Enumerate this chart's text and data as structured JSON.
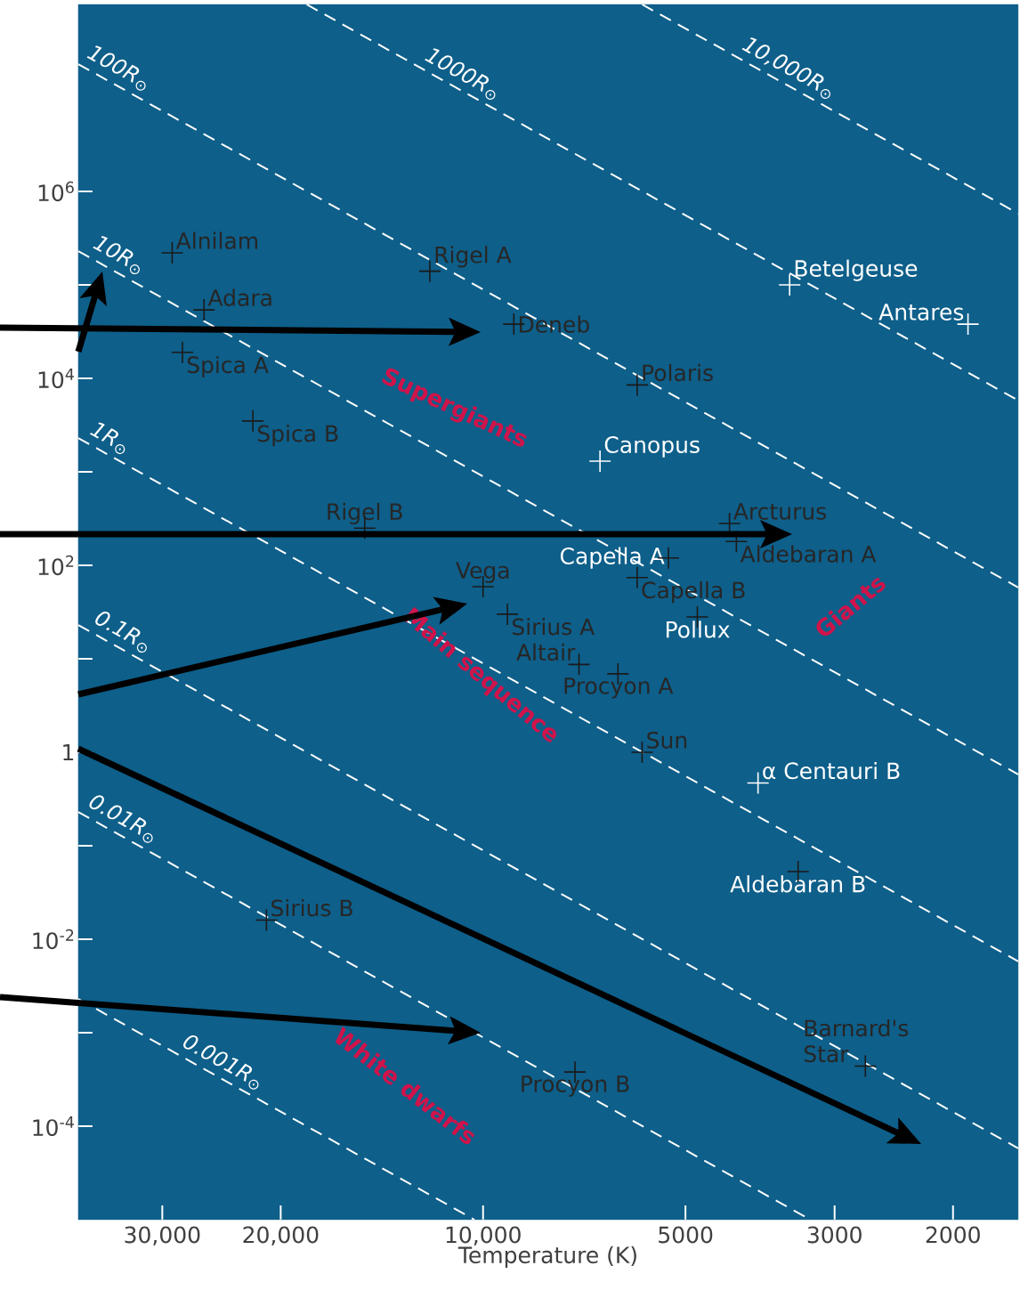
{
  "chart_data": {
    "type": "scatter",
    "xlabel": "Temperature (K)",
    "log": "xy",
    "xlim": [
      40000,
      1600
    ],
    "ylim": [
      1e-05,
      100000000.0
    ],
    "xticks": [
      {
        "value": 30000,
        "label": "30,000"
      },
      {
        "value": 20000,
        "label": "20,000"
      },
      {
        "value": 10000,
        "label": "10,000"
      },
      5000,
      3000,
      2000
    ],
    "yticks": [
      {
        "value": 0.0001,
        "label": "10$^{-4}$"
      },
      {
        "value": 0.001,
        "label": null
      },
      {
        "value": 0.01,
        "label": "10$^{-2}$"
      },
      {
        "value": 0.1,
        "label": null
      },
      1,
      {
        "value": 10,
        "label": null
      },
      {
        "value": 100,
        "label": "10$^{2}$"
      },
      {
        "value": 1000,
        "label": null
      },
      {
        "value": 10000,
        "label": "10$^{4}$"
      },
      {
        "value": 100000,
        "label": null
      },
      {
        "value": 1000000,
        "label": "10$^{6}$"
      }
    ],
    "marker": "cross",
    "grid": false,
    "series": [
      {
        "type": "line",
        "line_style": "dashed",
        "marker": "none",
        "color": "#ffffff",
        "x": [
          5800,
          1600
        ],
        "values": [
          100000000.0,
          580000.0
        ]
      },
      {
        "type": "line",
        "line_style": "dashed",
        "marker": "none",
        "color": "#ffffff",
        "x": [
          18300,
          1600
        ],
        "values": [
          100000000.0,
          5800
        ]
      },
      {
        "type": "line",
        "line_style": "dashed",
        "marker": "none",
        "color": "#ffffff",
        "x": [
          40000,
          1600
        ],
        "values": [
          23000000.0,
          58
        ]
      },
      {
        "type": "line",
        "line_style": "dashed",
        "marker": "none",
        "color": "#ffffff",
        "x": [
          40000,
          1600
        ],
        "values": [
          230000.0,
          0.58
        ]
      },
      {
        "type": "line",
        "line_style": "dashed",
        "marker": "none",
        "color": "#ffffff",
        "x": [
          40000,
          1600
        ],
        "values": [
          2300,
          0.0058
        ]
      },
      {
        "type": "line",
        "line_style": "dashed",
        "marker": "none",
        "color": "#ffffff",
        "x": [
          40000,
          1600
        ],
        "values": [
          23,
          5.8e-05
        ]
      },
      {
        "type": "line",
        "line_style": "dashed",
        "marker": "none",
        "color": "#ffffff",
        "x": [
          40000,
          3260
        ],
        "values": [
          0.23,
          1e-05
        ]
      },
      {
        "type": "line",
        "line_style": "dashed",
        "marker": "none",
        "color": "#ffffff",
        "x": [
          40000,
          10300
        ],
        "values": [
          0.0023,
          1e-05
        ]
      },
      {
        "x": [
          29000,
          26000,
          28000,
          22000,
          12000,
          9000,
          5900,
          3500,
          1900,
          6700,
          15000,
          4300,
          5300,
          4200,
          5900,
          4800,
          10000,
          9200,
          7200,
          6300,
          5800,
          3900,
          3400,
          2700,
          21000,
          7300
        ],
        "values": [
          220000,
          54000,
          19000,
          3500,
          140000,
          38000,
          8500,
          100000,
          38000,
          1300,
          250,
          280,
          120,
          180,
          74,
          28,
          59,
          30,
          8.7,
          6.9,
          1,
          0.47,
          0.053,
          0.00044,
          0.016,
          0.00038
        ],
        "colors": [
          "#1a1a1a",
          "#1a1a1a",
          "#1a1a1a",
          "#1a1a1a",
          "#1a1a1a",
          "#1a1a1a",
          "#1a1a1a",
          "#ffffff",
          "#ffffff",
          "#ffffff",
          "#1a1a1a",
          "#1a1a1a",
          "#1a1a1a",
          "#1a1a1a",
          "#1a1a1a",
          "#1a1a1a",
          "#1a1a1a",
          "#1a1a1a",
          "#1a1a1a",
          "#1a1a1a",
          "#1a1a1a",
          "#ffffff",
          "#1a1a1a",
          "#1a1a1a",
          "#1a1a1a",
          "#1a1a1a"
        ]
      }
    ],
    "annotations": [
      {
        "text": "Alnilam",
        "x": 29000,
        "y": 220000
      },
      {
        "text": "Adara",
        "x": 26000,
        "y": 54000
      },
      {
        "text": "Spica A",
        "x": 28000,
        "y": 19000
      },
      {
        "text": "Spica B",
        "x": 22000,
        "y": 3500
      },
      {
        "text": "Rigel A",
        "x": 12000,
        "y": 140000
      },
      {
        "text": "Deneb",
        "x": 9000,
        "y": 38000
      },
      {
        "text": "Polaris",
        "x": 5900,
        "y": 8500
      },
      {
        "text": "Betelgeuse",
        "x": 3500,
        "y": 100000
      },
      {
        "text": "Antares",
        "x": 1900,
        "y": 38000
      },
      {
        "text": "Canopus",
        "x": 6700,
        "y": 1300
      },
      {
        "text": "Rigel B",
        "x": 15000,
        "y": 250
      },
      {
        "text": "Arcturus",
        "x": 4300,
        "y": 280
      },
      {
        "text": "Capella A",
        "x": 5300,
        "y": 120
      },
      {
        "text": "Aldebaran A",
        "x": 4200,
        "y": 180
      },
      {
        "text": "Capella B",
        "x": 5900,
        "y": 74
      },
      {
        "text": "Pollux",
        "x": 4800,
        "y": 28
      },
      {
        "text": "Vega",
        "x": 10000,
        "y": 59
      },
      {
        "text": "Sirius A",
        "x": 9200,
        "y": 30
      },
      {
        "text": "Altair",
        "x": 7200,
        "y": 8.7
      },
      {
        "text": "Procyon A",
        "x": 6300,
        "y": 6.9
      },
      {
        "text": "Sun",
        "x": 5800,
        "y": 1
      },
      {
        "text": "α Centauri B",
        "x": 3900,
        "y": 0.47
      },
      {
        "text": "Aldebaran B",
        "x": 3400,
        "y": 0.053
      },
      {
        "text": "Barnard's Star",
        "x": 2700,
        "y": 0.00044
      },
      {
        "text": "Sirius B",
        "x": 21000,
        "y": 0.016
      },
      {
        "text": "Procyon B",
        "x": 7300,
        "y": 0.00038
      },
      {
        "text": "10,000R$_{⊙}$",
        "x": 3600,
        "y": 15000000.0
      },
      {
        "text": "1000R$_{⊙}$",
        "x": 11000,
        "y": 13000000.0
      },
      {
        "text": "100R$_{⊙}$",
        "x": 35700,
        "y": 15000000.0
      },
      {
        "text": "10R$_{⊙}$",
        "x": 35700,
        "y": 150000.0
      },
      {
        "text": "1R$_{⊙}$",
        "x": 36800,
        "y": 1650
      },
      {
        "text": "0.1R$_{⊙}$",
        "x": 35200,
        "y": 14
      },
      {
        "text": "0.01R$_{⊙}$",
        "x": 35200,
        "y": 0.14
      },
      {
        "text": "0.001R$_{⊙}$",
        "x": 25000,
        "y": 0.00035
      },
      "Supergiants",
      "Main sequence",
      "Giants",
      "White dwarfs"
    ]
  }
}
